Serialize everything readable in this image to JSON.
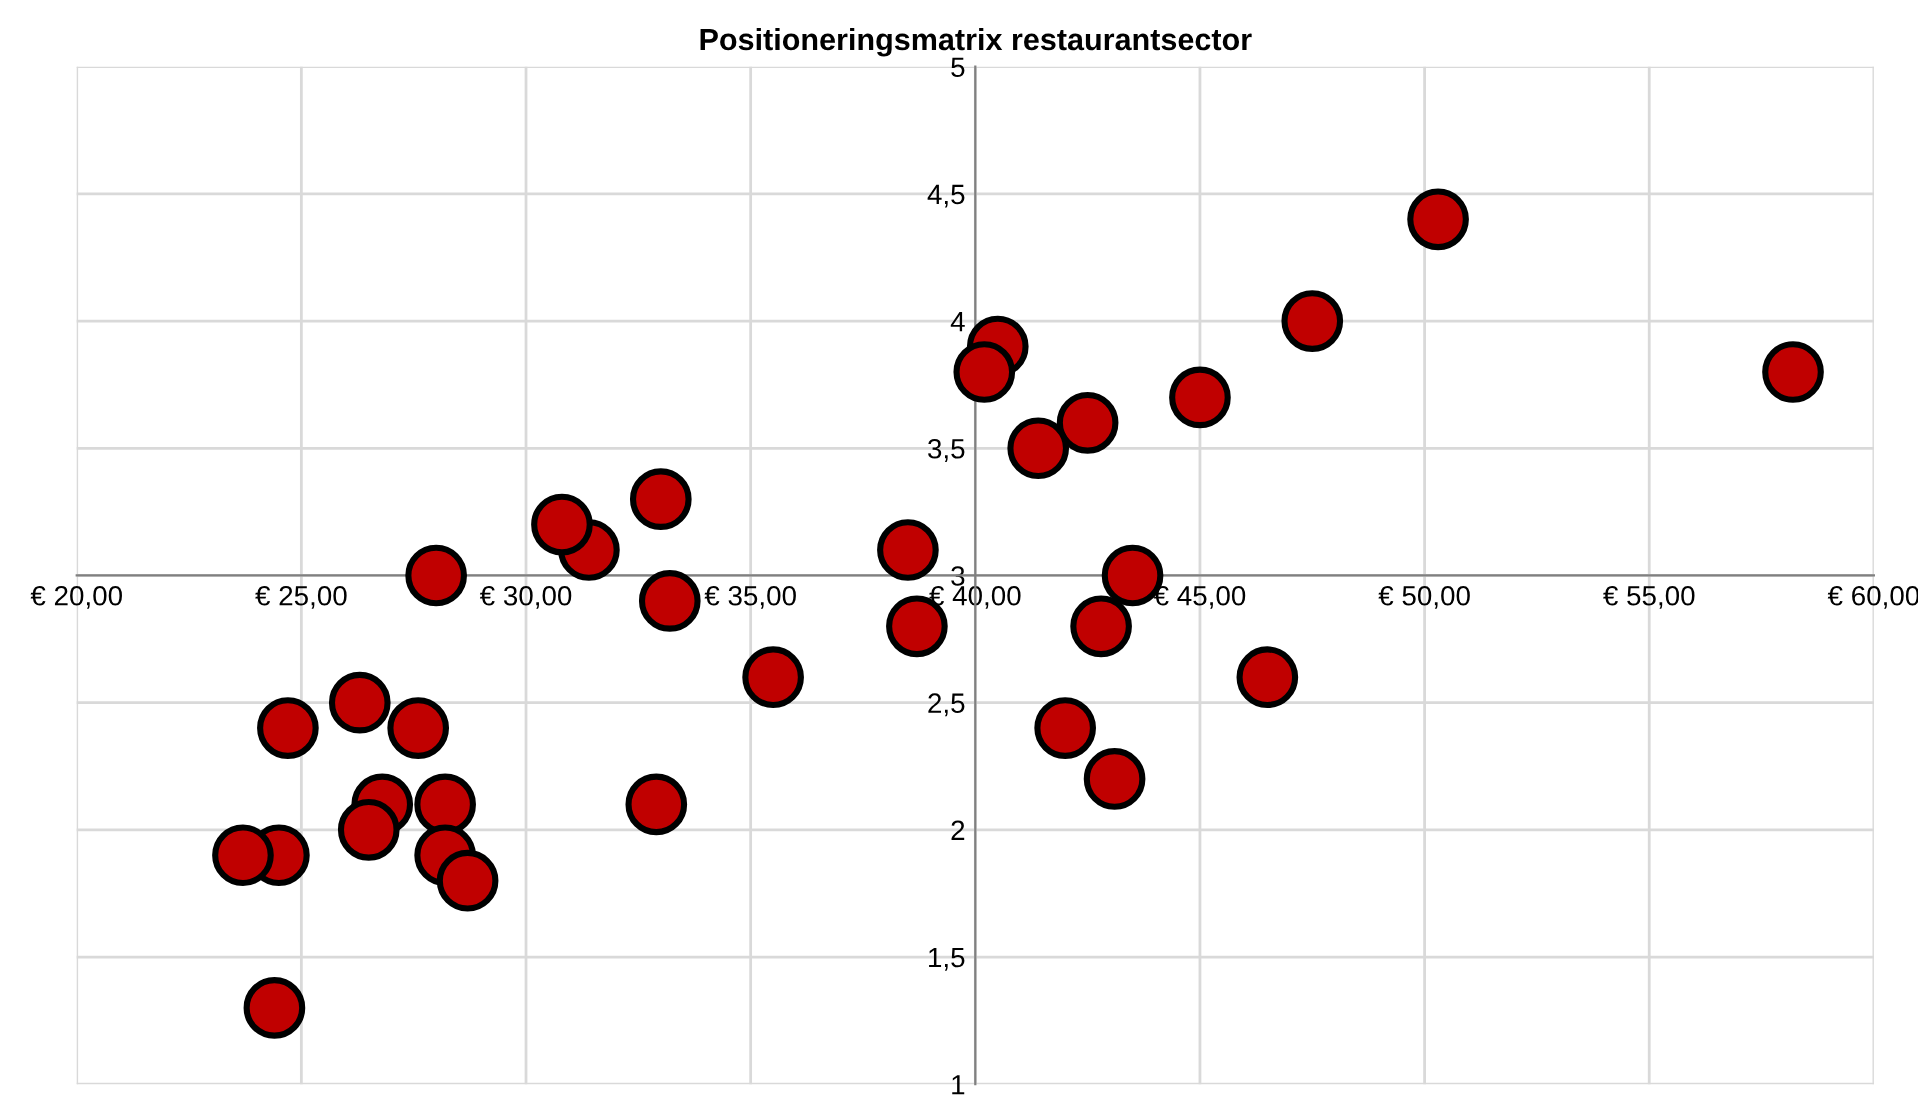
{
  "chart_data": {
    "type": "scatter",
    "title": "Positioneringsmatrix restaurantsector",
    "x": [
      58.2,
      50.3,
      47.5,
      45.0,
      46.5,
      43.5,
      42.8,
      43.1,
      42.0,
      42.5,
      41.4,
      40.5,
      40.2,
      38.5,
      38.7,
      35.5,
      33.2,
      33.0,
      32.9,
      31.4,
      30.8,
      28.0,
      27.6,
      26.3,
      24.7,
      26.8,
      26.5,
      28.2,
      28.2,
      28.7,
      24.5,
      23.7,
      24.4
    ],
    "series": [
      {
        "color": "#c00000",
        "values": [
          3.8,
          4.4,
          4.0,
          3.7,
          2.6,
          3.0,
          2.8,
          2.2,
          2.4,
          3.6,
          3.5,
          3.9,
          3.8,
          3.1,
          2.8,
          2.6,
          2.9,
          3.3,
          2.1,
          3.1,
          3.2,
          3.0,
          2.4,
          2.5,
          2.4,
          2.1,
          2.0,
          2.1,
          1.9,
          1.8,
          1.9,
          1.9,
          1.3
        ]
      }
    ],
    "xlim": [
      20,
      60
    ],
    "ylim": [
      1,
      5
    ],
    "xticks": [
      {
        "value": 20,
        "label": "€ 20,00"
      },
      {
        "value": 25,
        "label": "€ 25,00"
      },
      {
        "value": 30,
        "label": "€ 30,00"
      },
      {
        "value": 35,
        "label": "€ 35,00"
      },
      {
        "value": 40,
        "label": "€ 40,00"
      },
      {
        "value": 45,
        "label": "€ 45,00"
      },
      {
        "value": 50,
        "label": "€ 50,00"
      },
      {
        "value": 55,
        "label": "€ 55,00"
      },
      {
        "value": 60,
        "label": "€ 60,00"
      }
    ],
    "yticks": [
      1,
      {
        "value": 1.5,
        "label": "1,5"
      },
      2,
      {
        "value": 2.5,
        "label": "2,5"
      },
      3,
      {
        "value": 3.5,
        "label": "3,5"
      },
      4,
      {
        "value": 4.5,
        "label": "4,5"
      },
      5
    ],
    "grid": true,
    "marker": "circle"
  }
}
